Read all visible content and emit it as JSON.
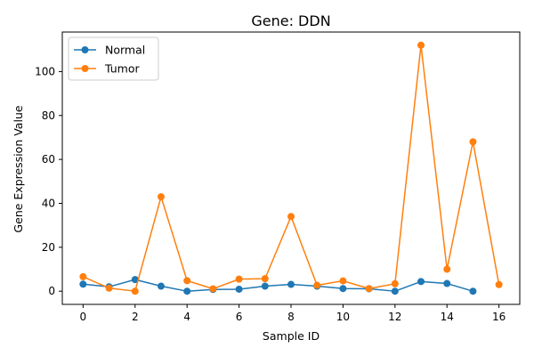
{
  "chart_data": {
    "type": "line",
    "title": "Gene: DDN",
    "xlabel": "Sample ID",
    "ylabel": "Gene Expression Value",
    "xlim": [
      -0.8,
      16.8
    ],
    "ylim": [
      -6,
      118
    ],
    "x_ticks": [
      0,
      2,
      4,
      6,
      8,
      10,
      12,
      14,
      16
    ],
    "y_ticks": [
      0,
      20,
      40,
      60,
      80,
      100
    ],
    "grid": false,
    "legend": "top-left",
    "series": [
      {
        "name": "Normal",
        "color": "#1f77b4",
        "marker": "circle",
        "x": [
          0,
          1,
          2,
          3,
          4,
          5,
          6,
          7,
          8,
          9,
          10,
          11,
          12,
          13,
          14,
          15
        ],
        "values": [
          3.2,
          2.0,
          5.3,
          2.3,
          0.0,
          0.8,
          0.9,
          2.3,
          3.1,
          2.3,
          1.2,
          1.1,
          0.0,
          4.4,
          3.5,
          0.0
        ]
      },
      {
        "name": "Tumor",
        "color": "#ff7f0e",
        "marker": "circle",
        "x": [
          0,
          1,
          2,
          3,
          4,
          5,
          6,
          7,
          8,
          9,
          10,
          11,
          12,
          13,
          14,
          15,
          16
        ],
        "values": [
          6.6,
          1.4,
          0.0,
          43.0,
          4.8,
          1.1,
          5.5,
          5.7,
          34.0,
          2.7,
          4.7,
          1.2,
          3.4,
          112.0,
          10.0,
          68.0,
          3.0
        ]
      }
    ]
  }
}
